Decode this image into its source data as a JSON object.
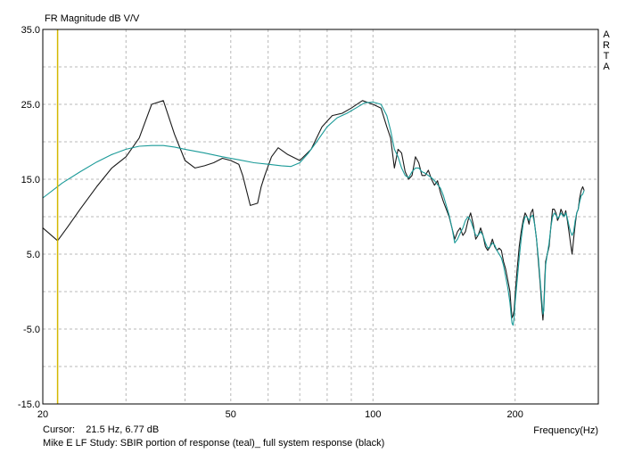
{
  "chart_data": {
    "type": "line",
    "title": "FR Magnitude dB V/V",
    "xlabel": "Frequency(Hz)",
    "ylabel": "",
    "xscale": "log",
    "xlim": [
      20,
      300
    ],
    "ylim": [
      -15,
      35
    ],
    "x_tick_labels": [
      "20",
      "50",
      "100",
      "200"
    ],
    "x_tick_values": [
      20,
      50,
      100,
      200
    ],
    "y_tick_labels": [
      "35.0",
      "25.0",
      "15.0",
      "5.0",
      "-5.0",
      "-15.0"
    ],
    "y_tick_values": [
      35,
      25,
      15,
      5,
      -5,
      -15
    ],
    "grid": true,
    "watermark": [
      "A",
      "R",
      "T",
      "A"
    ],
    "cursor": {
      "x": 21.5,
      "label": "Cursor:",
      "text": "21.5 Hz, 6.77 dB",
      "color": "#d4b800"
    },
    "caption": "Mike E LF Study: SBIR portion of response (teal)_ full system response (black)",
    "series": [
      {
        "color": "#1a1a1a",
        "points": [
          [
            20,
            8.5
          ],
          [
            21.5,
            6.8
          ],
          [
            22.5,
            8.5
          ],
          [
            24,
            11
          ],
          [
            26,
            14
          ],
          [
            28,
            16.5
          ],
          [
            30,
            18
          ],
          [
            32,
            20.5
          ],
          [
            34,
            25
          ],
          [
            36,
            25.5
          ],
          [
            38,
            21
          ],
          [
            40,
            17.5
          ],
          [
            42,
            16.5
          ],
          [
            44,
            16.8
          ],
          [
            46,
            17.2
          ],
          [
            48,
            17.8
          ],
          [
            50,
            17.5
          ],
          [
            52,
            17
          ],
          [
            53,
            15.5
          ],
          [
            55,
            11.5
          ],
          [
            57,
            11.8
          ],
          [
            58,
            14
          ],
          [
            59,
            15.5
          ],
          [
            61,
            18
          ],
          [
            63,
            19.2
          ],
          [
            66,
            18.3
          ],
          [
            70,
            17.5
          ],
          [
            74,
            19
          ],
          [
            78,
            22
          ],
          [
            82,
            23.5
          ],
          [
            86,
            23.8
          ],
          [
            90,
            24.5
          ],
          [
            95,
            25.5
          ],
          [
            100,
            25
          ],
          [
            104,
            24.5
          ],
          [
            107,
            22
          ],
          [
            109,
            20.5
          ],
          [
            111,
            16.5
          ],
          [
            113,
            19
          ],
          [
            115,
            18.5
          ],
          [
            117,
            16
          ],
          [
            119,
            15
          ],
          [
            121,
            15.5
          ],
          [
            123,
            18
          ],
          [
            125,
            17.2
          ],
          [
            127,
            15.5
          ],
          [
            129,
            15.5
          ],
          [
            131,
            16.2
          ],
          [
            133,
            15
          ],
          [
            135,
            14.2
          ],
          [
            137,
            14.8
          ],
          [
            139,
            13.2
          ],
          [
            141,
            12
          ],
          [
            143,
            11
          ],
          [
            145,
            10
          ],
          [
            147,
            8.5
          ],
          [
            149,
            7
          ],
          [
            151,
            8
          ],
          [
            153,
            8.5
          ],
          [
            155,
            7.5
          ],
          [
            157,
            8
          ],
          [
            159,
            9.5
          ],
          [
            161,
            10.5
          ],
          [
            163,
            9
          ],
          [
            165,
            7
          ],
          [
            167,
            7.5
          ],
          [
            169,
            8.5
          ],
          [
            171,
            7.5
          ],
          [
            173,
            6
          ],
          [
            175,
            5.5
          ],
          [
            177,
            6
          ],
          [
            179,
            7
          ],
          [
            181,
            6
          ],
          [
            183,
            5.5
          ],
          [
            185,
            5.8
          ],
          [
            187,
            5.5
          ],
          [
            189,
            4
          ],
          [
            191,
            3
          ],
          [
            193,
            1.5
          ],
          [
            195,
            0
          ],
          [
            196,
            -2
          ],
          [
            197,
            -3.5
          ],
          [
            198,
            -3.2
          ],
          [
            199,
            -2.5
          ],
          [
            200,
            -0.5
          ],
          [
            202,
            3
          ],
          [
            204,
            6
          ],
          [
            206,
            8
          ],
          [
            208,
            9.5
          ],
          [
            210,
            10.5
          ],
          [
            212,
            10
          ],
          [
            214,
            9
          ],
          [
            216,
            10.5
          ],
          [
            218,
            11
          ],
          [
            220,
            9
          ],
          [
            222,
            7
          ],
          [
            224,
            4
          ],
          [
            226,
            1
          ],
          [
            228,
            -2.5
          ],
          [
            229,
            -3.8
          ],
          [
            230,
            -2
          ],
          [
            231,
            1.5
          ],
          [
            232,
            4
          ],
          [
            234,
            5
          ],
          [
            236,
            6
          ],
          [
            238,
            8.5
          ],
          [
            240,
            11
          ],
          [
            242,
            11
          ],
          [
            244,
            10.5
          ],
          [
            246,
            9.5
          ],
          [
            248,
            10
          ],
          [
            250,
            11
          ],
          [
            252,
            10.5
          ],
          [
            254,
            10
          ],
          [
            256,
            10.8
          ],
          [
            258,
            9.5
          ],
          [
            260,
            8
          ],
          [
            262,
            6.5
          ],
          [
            264,
            5
          ],
          [
            266,
            7
          ],
          [
            268,
            9
          ],
          [
            270,
            10.5
          ],
          [
            272,
            11
          ],
          [
            274,
            12.5
          ],
          [
            276,
            13.5
          ],
          [
            278,
            14
          ],
          [
            280,
            13.5
          ]
        ]
      },
      {
        "color": "#1a9a98",
        "points": [
          [
            20,
            12.5
          ],
          [
            22,
            14.5
          ],
          [
            24,
            16
          ],
          [
            26,
            17.3
          ],
          [
            28,
            18.3
          ],
          [
            30,
            19
          ],
          [
            32,
            19.4
          ],
          [
            34,
            19.5
          ],
          [
            36,
            19.5
          ],
          [
            38,
            19.3
          ],
          [
            40,
            19
          ],
          [
            44,
            18.5
          ],
          [
            48,
            18
          ],
          [
            52,
            17.6
          ],
          [
            56,
            17.2
          ],
          [
            60,
            17
          ],
          [
            64,
            16.8
          ],
          [
            67,
            16.7
          ],
          [
            70,
            17.2
          ],
          [
            73,
            18.5
          ],
          [
            76,
            20
          ],
          [
            80,
            22
          ],
          [
            84,
            23.2
          ],
          [
            88,
            23.8
          ],
          [
            92,
            24.5
          ],
          [
            96,
            25.2
          ],
          [
            100,
            25.3
          ],
          [
            104,
            25
          ],
          [
            107,
            23.5
          ],
          [
            109,
            21.5
          ],
          [
            111,
            19
          ],
          [
            113,
            18
          ],
          [
            115,
            16.5
          ],
          [
            117,
            15.5
          ],
          [
            119,
            15.2
          ],
          [
            121,
            16
          ],
          [
            123,
            16.5
          ],
          [
            125,
            16.5
          ],
          [
            127,
            16
          ],
          [
            129,
            15.8
          ],
          [
            131,
            15.5
          ],
          [
            133,
            15.2
          ],
          [
            135,
            14.8
          ],
          [
            137,
            14.3
          ],
          [
            139,
            13.8
          ],
          [
            141,
            12.8
          ],
          [
            143,
            11.5
          ],
          [
            145,
            10.2
          ],
          [
            147,
            8.5
          ],
          [
            149,
            6.5
          ],
          [
            151,
            7
          ],
          [
            153,
            7.8
          ],
          [
            155,
            8.5
          ],
          [
            157,
            9.5
          ],
          [
            159,
            10
          ],
          [
            161,
            9.5
          ],
          [
            163,
            8.5
          ],
          [
            165,
            7.5
          ],
          [
            167,
            7.5
          ],
          [
            169,
            8
          ],
          [
            171,
            7.5
          ],
          [
            173,
            6.5
          ],
          [
            175,
            5.8
          ],
          [
            177,
            6
          ],
          [
            179,
            6.5
          ],
          [
            181,
            6.2
          ],
          [
            183,
            5.5
          ],
          [
            185,
            5
          ],
          [
            187,
            4.5
          ],
          [
            189,
            3.5
          ],
          [
            191,
            2
          ],
          [
            193,
            0.5
          ],
          [
            195,
            -1.5
          ],
          [
            196,
            -3
          ],
          [
            197,
            -4.2
          ],
          [
            198,
            -4.5
          ],
          [
            199,
            -3.5
          ],
          [
            200,
            -1.5
          ],
          [
            202,
            1.5
          ],
          [
            204,
            4.5
          ],
          [
            206,
            7
          ],
          [
            208,
            9
          ],
          [
            210,
            10
          ],
          [
            212,
            10
          ],
          [
            214,
            9.5
          ],
          [
            216,
            10
          ],
          [
            218,
            10.2
          ],
          [
            220,
            9
          ],
          [
            222,
            7
          ],
          [
            224,
            4.5
          ],
          [
            226,
            1.5
          ],
          [
            228,
            -1.5
          ],
          [
            229,
            -3
          ],
          [
            230,
            -2.5
          ],
          [
            231,
            0.5
          ],
          [
            232,
            3.5
          ],
          [
            234,
            5
          ],
          [
            236,
            6.5
          ],
          [
            238,
            8.5
          ],
          [
            240,
            10
          ],
          [
            242,
            10.5
          ],
          [
            244,
            10.2
          ],
          [
            246,
            9.8
          ],
          [
            248,
            10
          ],
          [
            250,
            10.5
          ],
          [
            252,
            10.2
          ],
          [
            254,
            10
          ],
          [
            256,
            10.5
          ],
          [
            258,
            9.8
          ],
          [
            260,
            8.8
          ],
          [
            262,
            8
          ],
          [
            264,
            7.5
          ],
          [
            266,
            8
          ],
          [
            268,
            9.5
          ],
          [
            270,
            10.5
          ],
          [
            272,
            11
          ],
          [
            274,
            12
          ],
          [
            276,
            12.8
          ],
          [
            278,
            13
          ],
          [
            280,
            13.5
          ]
        ]
      }
    ]
  }
}
